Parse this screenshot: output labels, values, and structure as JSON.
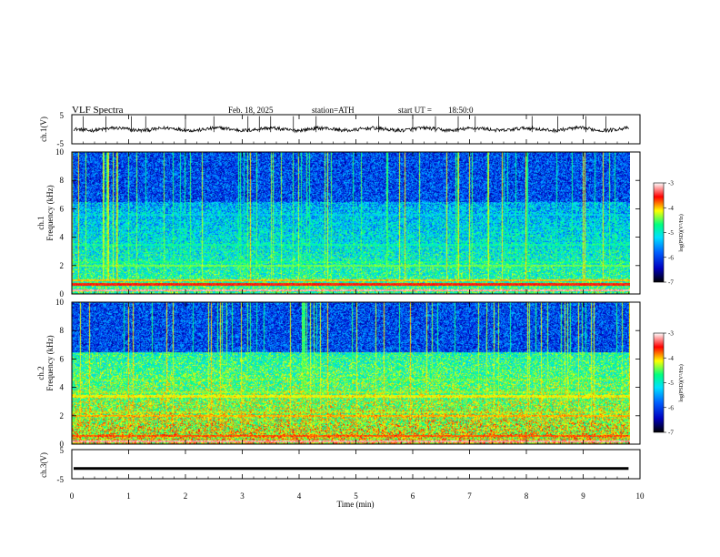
{
  "header": {
    "title": "VLF Spectra",
    "date": "Feb. 18, 2025",
    "station": "station=ATH",
    "start_label": "start UT =",
    "start_time": "18:50:0"
  },
  "colors": {
    "background": "#ffffff",
    "axis": "#000000",
    "colormap": [
      "#000000",
      "#0000c0",
      "#0060ff",
      "#00e0ff",
      "#00ff80",
      "#ffff00",
      "#ff0000",
      "#ffffff"
    ]
  },
  "colorbar": {
    "label": "log(PSD)(V²/Hz)",
    "ticks": [
      "-3",
      "-4",
      "-5",
      "-6",
      "-7"
    ],
    "range": [
      -7,
      -3
    ]
  },
  "chart_data": [
    {
      "type": "line",
      "panel": "ch1-waveform",
      "ylabel": "ch.1(V)",
      "ylim": [
        -5,
        5
      ],
      "yticks": [
        "5",
        "-5"
      ],
      "baseline": 0,
      "x_unit": "min",
      "xlim": [
        0,
        10
      ],
      "data_end": 9.8,
      "spikes_x": [
        0.2,
        0.6,
        1.05,
        1.3,
        2.0,
        2.5,
        3.1,
        3.3,
        3.5,
        3.9,
        4.3,
        5.4,
        6.0,
        6.4,
        6.8,
        7.1,
        8.1,
        8.55,
        9.05,
        9.4
      ]
    },
    {
      "type": "heatmap",
      "panel": "ch1-spectrogram",
      "ylabel_top": "ch.1",
      "ylabel": "Frequency (kHz)",
      "ylim": [
        0,
        10
      ],
      "yticks": [
        "10",
        "8",
        "6",
        "4",
        "2",
        "0"
      ],
      "xlim": [
        0,
        10
      ],
      "data_end": 9.8,
      "colorbar_range": [
        -7,
        -3
      ],
      "bands_khz": [
        {
          "f": 0.3,
          "level": -3.2
        },
        {
          "f": 0.7,
          "level": -3.6
        },
        {
          "f": 1.0,
          "level": -4.0
        },
        {
          "f": 2.0,
          "level": -4.5
        },
        {
          "f": 2.3,
          "level": -4.8
        },
        {
          "f": 3.5,
          "level": -5.0
        },
        {
          "f": 5.6,
          "level": -5.5
        }
      ]
    },
    {
      "type": "heatmap",
      "panel": "ch2-spectrogram",
      "ylabel_top": "ch.2",
      "ylabel": "Frequency (kHz)",
      "ylim": [
        0,
        10
      ],
      "yticks": [
        "10",
        "8",
        "6",
        "4",
        "2",
        "0"
      ],
      "xlim": [
        0,
        10
      ],
      "data_end": 9.8,
      "colorbar_range": [
        -7,
        -3
      ],
      "bands_khz": [
        {
          "f": 0.2,
          "level": -3.2
        },
        {
          "f": 0.6,
          "level": -3.8
        },
        {
          "f": 2.0,
          "level": -4.0
        },
        {
          "f": 2.3,
          "level": -4.4
        },
        {
          "f": 3.4,
          "level": -4.2
        },
        {
          "f": 3.7,
          "level": -4.5
        },
        {
          "f": 4.6,
          "level": -4.6
        }
      ]
    },
    {
      "type": "line",
      "panel": "ch3-waveform",
      "ylabel": "ch.3(V)",
      "ylim": [
        -5,
        5
      ],
      "yticks": [
        "5",
        "-5"
      ],
      "baseline": -1.5,
      "xlim": [
        0,
        10
      ],
      "data_end": 9.8,
      "xlabel": "Time (min)",
      "xticks": [
        "0",
        "1",
        "2",
        "3",
        "4",
        "5",
        "6",
        "7",
        "8",
        "9",
        "10"
      ]
    }
  ]
}
